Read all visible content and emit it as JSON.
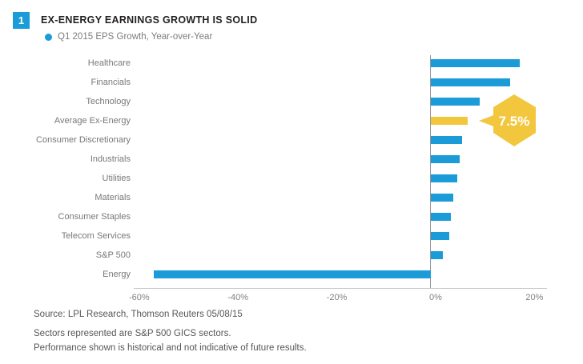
{
  "header": {
    "number": "1",
    "title": "EX-ENERGY EARNINGS GROWTH IS SOLID"
  },
  "legend": {
    "label": "Q1 2015 EPS Growth, Year-over-Year"
  },
  "chart_data": {
    "type": "bar",
    "orientation": "horizontal",
    "title": "Q1 2015 EPS Growth, Year-over-Year",
    "xlabel": "",
    "ylabel": "",
    "unit": "%",
    "xlim": [
      -60,
      23
    ],
    "grid": false,
    "legend_position": "top-left",
    "categories": [
      "Healthcare",
      "Financials",
      "Technology",
      "Average Ex-Energy",
      "Consumer Discretionary",
      "Industrials",
      "Utilities",
      "Materials",
      "Consumer Staples",
      "Telecom Services",
      "S&P 500",
      "Energy"
    ],
    "values": [
      18,
      16,
      9.9,
      7.5,
      6.3,
      5.9,
      5.3,
      4.5,
      4,
      3.7,
      2.4,
      -56
    ],
    "xticks": [
      {
        "value": -60,
        "label": "-60%"
      },
      {
        "value": -40,
        "label": "-40%"
      },
      {
        "value": -20,
        "label": "-20%"
      },
      {
        "value": 0,
        "label": "0%"
      },
      {
        "value": 20,
        "label": "20%"
      }
    ],
    "highlight": {
      "category": "Average Ex-Energy",
      "value_label": "7.5%"
    }
  },
  "callout": {
    "label": "7.5%"
  },
  "footer": {
    "source": "Source: LPL Research, Thomson Reuters 05/08/15",
    "note1": "Sectors represented are S&P 500 GICS sectors.",
    "note2": "Performance shown is historical and not indicative of future results."
  },
  "colors": {
    "accent_blue": "#1B9CD8",
    "accent_yellow": "#F2C73E",
    "title_text": "#231F20",
    "muted_text": "#7B7C7F",
    "footer_text": "#55565A",
    "axis_line": "#C7C8CA",
    "zero_line": "#939598",
    "callout_text": "#FFFFFF"
  }
}
